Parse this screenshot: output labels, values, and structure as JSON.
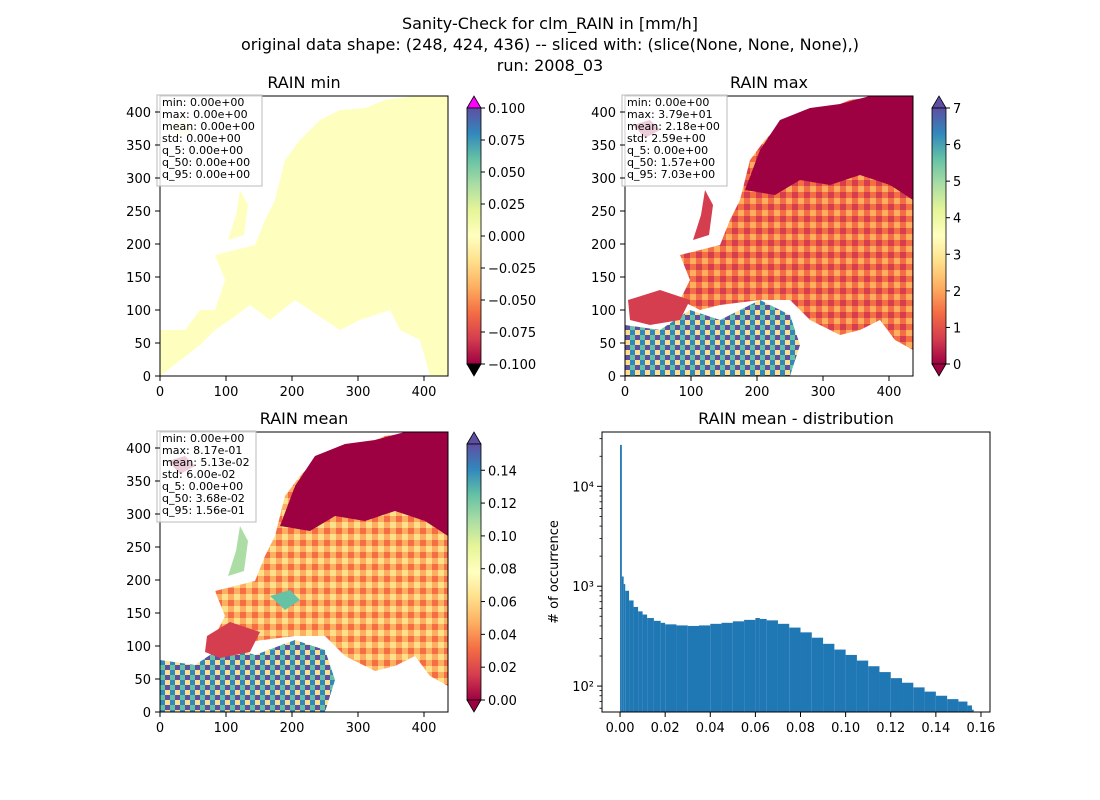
{
  "suptitle": [
    "Sanity-Check for clm_RAIN in [mm/h]",
    "original data shape: (248, 424, 436) -- sliced with: (slice(None, None, None),)",
    "run: 2008_03"
  ],
  "colors": {
    "land_min": "#feffbe",
    "hist_bar": "#1f77b4",
    "stats_edge": "#bbbbbb",
    "cmap_over_min": "#ff00ff",
    "cmap_under": "#000000",
    "spectral_r": [
      "#5e4fa2",
      "#3288bd",
      "#66c2a5",
      "#abdda4",
      "#e6f598",
      "#ffffbf",
      "#fee08b",
      "#fdae61",
      "#f46d43",
      "#d53e4f",
      "#9e0142"
    ]
  },
  "panels": {
    "min": {
      "title": "RAIN min",
      "stats": [
        "min: 0.00e+00",
        "max: 0.00e+00",
        "mean: 0.00e+00",
        "std: 0.00e+00",
        "q_5: 0.00e+00",
        "q_50: 0.00e+00",
        "q_95: 0.00e+00"
      ],
      "x_ticks": [
        "0",
        "100",
        "200",
        "300",
        "400"
      ],
      "y_ticks": [
        "0",
        "50",
        "100",
        "150",
        "200",
        "250",
        "300",
        "350",
        "400"
      ],
      "colorbar_ticks": [
        "0.100",
        "0.075",
        "0.050",
        "0.025",
        "0.000",
        "−0.025",
        "−0.050",
        "−0.075",
        "−0.100"
      ],
      "colorbar_range": [
        -0.1,
        0.1
      ]
    },
    "max": {
      "title": "RAIN max",
      "stats": [
        "min: 0.00e+00",
        "max: 3.79e+01",
        "mean: 2.18e+00",
        "std: 2.59e+00",
        "q_5: 0.00e+00",
        "q_50: 1.57e+00",
        "q_95: 7.03e+00"
      ],
      "x_ticks": [
        "0",
        "100",
        "200",
        "300",
        "400"
      ],
      "y_ticks": [
        "0",
        "50",
        "100",
        "150",
        "200",
        "250",
        "300",
        "350",
        "400"
      ],
      "colorbar_ticks": [
        "7",
        "6",
        "5",
        "4",
        "3",
        "2",
        "1",
        "0"
      ],
      "colorbar_range": [
        0,
        7
      ]
    },
    "mean": {
      "title": "RAIN mean",
      "stats": [
        "min: 0.00e+00",
        "max: 8.17e-01",
        "mean: 5.13e-02",
        "std: 6.00e-02",
        "q_5: 0.00e+00",
        "q_50: 3.68e-02",
        "q_95: 1.56e-01"
      ],
      "x_ticks": [
        "0",
        "100",
        "200",
        "300",
        "400"
      ],
      "y_ticks": [
        "0",
        "50",
        "100",
        "150",
        "200",
        "250",
        "300",
        "350",
        "400"
      ],
      "colorbar_ticks": [
        "0.14",
        "0.12",
        "0.10",
        "0.08",
        "0.06",
        "0.04",
        "0.02",
        "0.00"
      ],
      "colorbar_range": [
        0,
        0.156
      ]
    }
  },
  "chart_data": {
    "type": "bar",
    "title": "RAIN mean - distribution",
    "xlabel": "",
    "ylabel": "# of occurrence",
    "yscale": "log",
    "xlim": [
      -0.008,
      0.164
    ],
    "ylim": [
      55,
      35000
    ],
    "x_ticks": [
      "0.00",
      "0.02",
      "0.04",
      "0.06",
      "0.08",
      "0.10",
      "0.12",
      "0.14",
      "0.16"
    ],
    "y_ticks": [
      "10²",
      "10³",
      "10⁴"
    ],
    "bin_width": 0.00078,
    "bins": [
      [
        0.0,
        26000
      ],
      [
        0.0008,
        1250
      ],
      [
        0.0016,
        1050
      ],
      [
        0.0023,
        900
      ],
      [
        0.004,
        720
      ],
      [
        0.006,
        620
      ],
      [
        0.008,
        560
      ],
      [
        0.01,
        520
      ],
      [
        0.012,
        480
      ],
      [
        0.015,
        450
      ],
      [
        0.018,
        430
      ],
      [
        0.02,
        415
      ],
      [
        0.025,
        405
      ],
      [
        0.03,
        400
      ],
      [
        0.035,
        405
      ],
      [
        0.04,
        420
      ],
      [
        0.045,
        430
      ],
      [
        0.05,
        445
      ],
      [
        0.055,
        460
      ],
      [
        0.06,
        480
      ],
      [
        0.062,
        470
      ],
      [
        0.065,
        455
      ],
      [
        0.07,
        420
      ],
      [
        0.075,
        385
      ],
      [
        0.08,
        345
      ],
      [
        0.085,
        305
      ],
      [
        0.09,
        265
      ],
      [
        0.095,
        232
      ],
      [
        0.1,
        205
      ],
      [
        0.105,
        180
      ],
      [
        0.11,
        158
      ],
      [
        0.115,
        138
      ],
      [
        0.12,
        120
      ],
      [
        0.125,
        108
      ],
      [
        0.13,
        97
      ],
      [
        0.135,
        88
      ],
      [
        0.14,
        80
      ],
      [
        0.145,
        74
      ],
      [
        0.15,
        70
      ],
      [
        0.154,
        64
      ],
      [
        0.156,
        58
      ]
    ]
  }
}
